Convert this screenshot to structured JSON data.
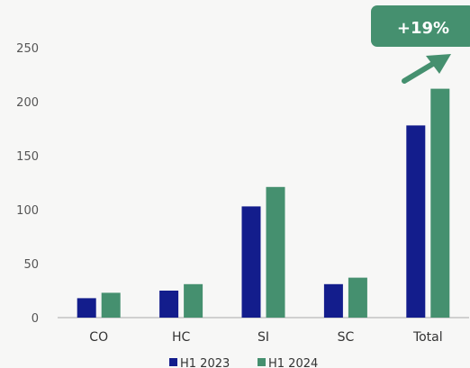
{
  "chart_data": {
    "type": "bar",
    "categories": [
      "CO",
      "HC",
      "SI",
      "SC",
      "Total"
    ],
    "series": [
      {
        "name": "H1 2023",
        "color": "#131d8c",
        "values": [
          18,
          25,
          103,
          31,
          178
        ]
      },
      {
        "name": "H1 2024",
        "color": "#45906f",
        "values": [
          23,
          31,
          121,
          37,
          212
        ]
      }
    ],
    "y_ticks": [
      0,
      50,
      100,
      150,
      200,
      250
    ],
    "ylim": [
      0,
      250
    ],
    "grid": false,
    "legend_position": "bottom-center",
    "annotation": {
      "text": "+19%",
      "color": "#45906f",
      "icon": "arrow-up-right-icon"
    }
  }
}
